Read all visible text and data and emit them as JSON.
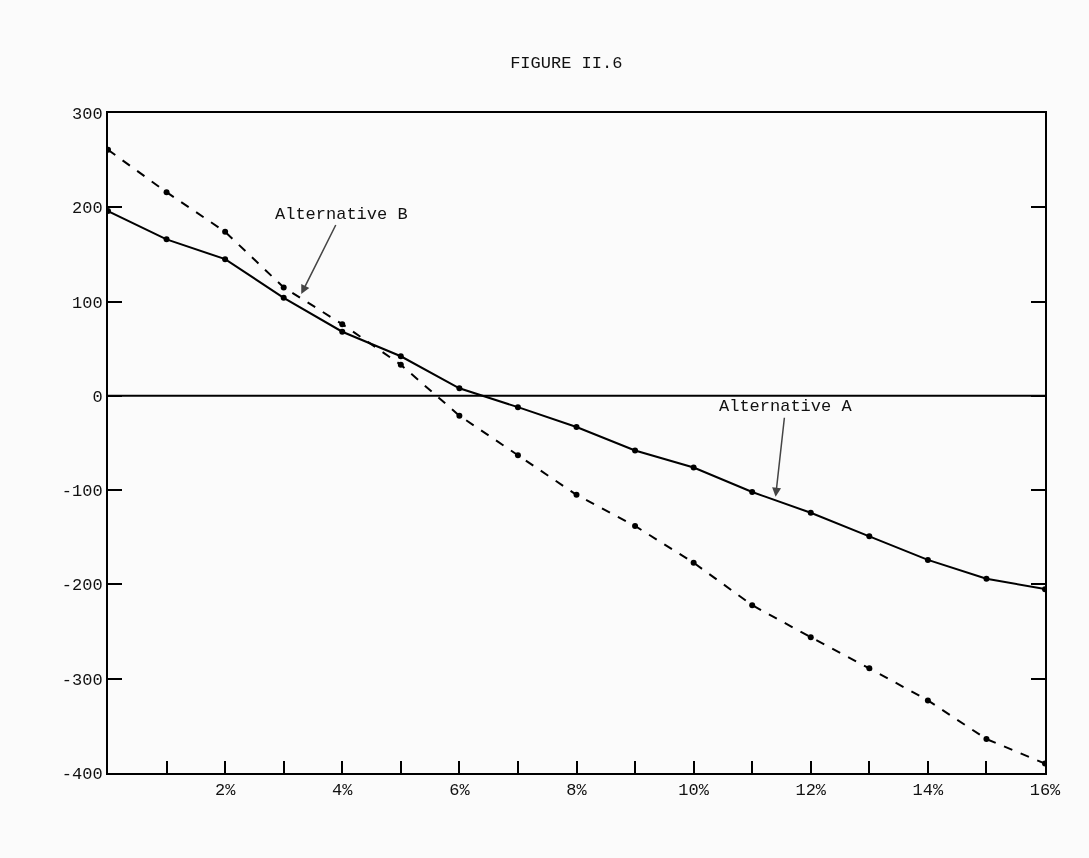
{
  "chart_data": {
    "type": "line",
    "title": "FIGURE II.6",
    "x": [
      0,
      1,
      2,
      3,
      4,
      5,
      6,
      7,
      8,
      9,
      10,
      11,
      12,
      13,
      14,
      15,
      16
    ],
    "series": [
      {
        "color": "#000000",
        "line_style": "solid",
        "values": [
          196,
          166,
          145,
          104,
          68,
          42,
          8,
          -12,
          -33,
          -58,
          -76,
          -102,
          -124,
          -149,
          -174,
          -194,
          -205
        ]
      },
      {
        "color": "#000000",
        "line_style": "dashed",
        "values": [
          261,
          216,
          174,
          115,
          76,
          33,
          -21,
          -63,
          -105,
          -138,
          -177,
          -222,
          -256,
          -289,
          -323,
          -364,
          -390
        ]
      }
    ],
    "marker": "circle",
    "grid": false,
    "xlim": [
      0,
      16
    ],
    "ylim": [
      -400,
      300
    ],
    "xticks": [
      {
        "value": 1,
        "label": null
      },
      {
        "value": 2,
        "label": "2%"
      },
      {
        "value": 3,
        "label": null
      },
      {
        "value": 4,
        "label": "4%"
      },
      {
        "value": 5,
        "label": null
      },
      {
        "value": 6,
        "label": "6%"
      },
      {
        "value": 7,
        "label": null
      },
      {
        "value": 8,
        "label": "8%"
      },
      {
        "value": 9,
        "label": null
      },
      {
        "value": 10,
        "label": "10%"
      },
      {
        "value": 11,
        "label": null
      },
      {
        "value": 12,
        "label": "12%"
      },
      {
        "value": 13,
        "label": null
      },
      {
        "value": 14,
        "label": "14%"
      },
      {
        "value": 15,
        "label": null
      },
      {
        "value": 16,
        "label": "16%"
      }
    ],
    "yticks": [
      -400,
      -300,
      -200,
      -100,
      0,
      100,
      200,
      300
    ],
    "ref_lines": [
      {
        "axis": "y",
        "value": 0,
        "color": "#000000"
      }
    ],
    "annotations": [
      {
        "text": "Alternative B",
        "x": 3.3,
        "y": 108
      },
      {
        "text": "Alternative A",
        "x": 11.4,
        "y": -107
      }
    ]
  }
}
